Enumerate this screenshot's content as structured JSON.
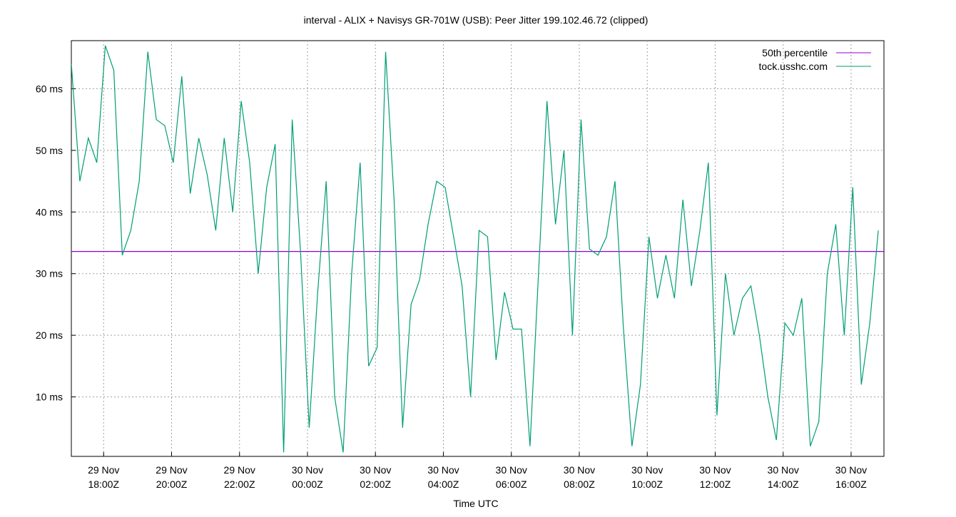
{
  "chart_data": {
    "type": "line",
    "title": "interval - ALIX + Navisys GR-701W (USB): Peer Jitter 199.102.46.72 (clipped)",
    "x_label": "Time UTC",
    "x": [
      "29 Nov 17:03",
      "29 Nov 17:18",
      "29 Nov 17:33",
      "29 Nov 17:48",
      "29 Nov 18:03",
      "29 Nov 18:18",
      "29 Nov 18:33",
      "29 Nov 18:48",
      "29 Nov 19:03",
      "29 Nov 19:18",
      "29 Nov 19:33",
      "29 Nov 19:48",
      "29 Nov 20:03",
      "29 Nov 20:18",
      "29 Nov 20:33",
      "29 Nov 20:48",
      "29 Nov 21:03",
      "29 Nov 21:18",
      "29 Nov 21:33",
      "29 Nov 21:48",
      "29 Nov 22:03",
      "29 Nov 22:18",
      "29 Nov 22:33",
      "29 Nov 22:48",
      "29 Nov 23:03",
      "29 Nov 23:18",
      "29 Nov 23:33",
      "29 Nov 23:48",
      "30 Nov 00:03",
      "30 Nov 00:18",
      "30 Nov 00:33",
      "30 Nov 00:48",
      "30 Nov 01:03",
      "30 Nov 01:18",
      "30 Nov 01:33",
      "30 Nov 01:48",
      "30 Nov 02:03",
      "30 Nov 02:18",
      "30 Nov 02:33",
      "30 Nov 02:48",
      "30 Nov 03:03",
      "30 Nov 03:18",
      "30 Nov 03:33",
      "30 Nov 03:48",
      "30 Nov 04:03",
      "30 Nov 04:18",
      "30 Nov 04:33",
      "30 Nov 04:48",
      "30 Nov 05:03",
      "30 Nov 05:18",
      "30 Nov 05:33",
      "30 Nov 05:48",
      "30 Nov 06:03",
      "30 Nov 06:18",
      "30 Nov 06:33",
      "30 Nov 06:48",
      "30 Nov 07:03",
      "30 Nov 07:18",
      "30 Nov 07:33",
      "30 Nov 07:48",
      "30 Nov 08:03",
      "30 Nov 08:18",
      "30 Nov 08:33",
      "30 Nov 08:48",
      "30 Nov 09:03",
      "30 Nov 09:18",
      "30 Nov 09:33",
      "30 Nov 09:48",
      "30 Nov 10:03",
      "30 Nov 10:18",
      "30 Nov 10:33",
      "30 Nov 10:48",
      "30 Nov 11:03",
      "30 Nov 11:18",
      "30 Nov 11:33",
      "30 Nov 11:48",
      "30 Nov 12:03",
      "30 Nov 12:18",
      "30 Nov 12:33",
      "30 Nov 12:48",
      "30 Nov 13:03",
      "30 Nov 13:18",
      "30 Nov 13:33",
      "30 Nov 13:48",
      "30 Nov 14:03",
      "30 Nov 14:18",
      "30 Nov 14:33",
      "30 Nov 14:48",
      "30 Nov 15:03",
      "30 Nov 15:18",
      "30 Nov 15:33",
      "30 Nov 15:48",
      "30 Nov 16:03",
      "30 Nov 16:18",
      "30 Nov 16:33",
      "30 Nov 16:48"
    ],
    "series": [
      {
        "name": "tock.usshc.com",
        "color": "#009e73",
        "values": [
          64,
          45,
          52,
          48,
          67,
          63,
          33,
          37,
          45,
          66,
          55,
          54,
          48,
          62,
          43,
          52,
          46,
          37,
          52,
          40,
          58,
          48,
          30,
          44,
          51,
          1,
          55,
          33,
          5,
          27,
          45,
          10,
          1,
          30,
          48,
          15,
          18,
          66,
          42,
          5,
          25,
          29,
          38,
          45,
          44,
          36,
          28,
          10,
          37,
          36,
          16,
          27,
          21,
          21,
          2,
          30,
          58,
          38,
          50,
          20,
          55,
          34,
          33,
          36,
          45,
          21,
          2,
          12,
          36,
          26,
          33,
          26,
          42,
          28,
          37,
          48,
          7,
          30,
          20,
          26,
          28,
          20,
          10,
          3,
          22,
          20,
          26,
          2,
          6,
          30,
          38,
          20,
          44,
          12,
          22,
          37
        ]
      }
    ],
    "reference_lines": [
      {
        "name": "50th percentile",
        "color": "#9400d3",
        "value": 33.6
      }
    ],
    "xlim": [
      "29 Nov 17:03",
      "30 Nov 16:58"
    ],
    "ylim": [
      0.35,
      67.8
    ],
    "yticks": [
      {
        "value": 10,
        "label": "10 ms"
      },
      {
        "value": 20,
        "label": "20 ms"
      },
      {
        "value": 30,
        "label": "30 ms"
      },
      {
        "value": 40,
        "label": "40 ms"
      },
      {
        "value": 50,
        "label": "50 ms"
      },
      {
        "value": 60,
        "label": "60 ms"
      }
    ],
    "xticks": [
      {
        "value": "29 Nov 18:00",
        "label": [
          "29 Nov",
          "18:00Z"
        ]
      },
      {
        "value": "29 Nov 20:00",
        "label": [
          "29 Nov",
          "20:00Z"
        ]
      },
      {
        "value": "29 Nov 22:00",
        "label": [
          "29 Nov",
          "22:00Z"
        ]
      },
      {
        "value": "30 Nov 00:00",
        "label": [
          "30 Nov",
          "00:00Z"
        ]
      },
      {
        "value": "30 Nov 02:00",
        "label": [
          "30 Nov",
          "02:00Z"
        ]
      },
      {
        "value": "30 Nov 04:00",
        "label": [
          "30 Nov",
          "04:00Z"
        ]
      },
      {
        "value": "30 Nov 06:00",
        "label": [
          "30 Nov",
          "06:00Z"
        ]
      },
      {
        "value": "30 Nov 08:00",
        "label": [
          "30 Nov",
          "08:00Z"
        ]
      },
      {
        "value": "30 Nov 10:00",
        "label": [
          "30 Nov",
          "10:00Z"
        ]
      },
      {
        "value": "30 Nov 12:00",
        "label": [
          "30 Nov",
          "12:00Z"
        ]
      },
      {
        "value": "30 Nov 14:00",
        "label": [
          "30 Nov",
          "14:00Z"
        ]
      },
      {
        "value": "30 Nov 16:00",
        "label": [
          "30 Nov",
          "16:00Z"
        ]
      }
    ],
    "grid": true,
    "legend": "top-right"
  }
}
